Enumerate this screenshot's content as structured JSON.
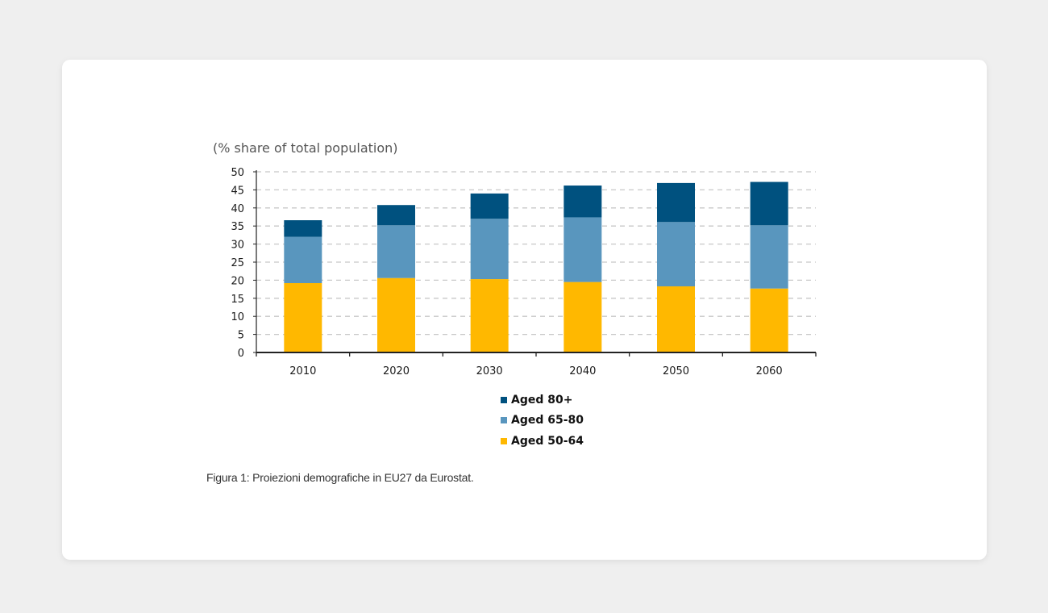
{
  "figure": {
    "caption": "Figura 1: Proiezioni demografiche in EU27 da Eurostat."
  },
  "chart_data": {
    "type": "bar",
    "stacked": true,
    "title": "",
    "ylabel": "(% share of total population)",
    "xlabel": "",
    "categories": [
      "2010",
      "2020",
      "2030",
      "2040",
      "2050",
      "2060"
    ],
    "ylim": [
      0,
      50
    ],
    "yticks": [
      0,
      5,
      10,
      15,
      20,
      25,
      30,
      35,
      40,
      45,
      50
    ],
    "grid": true,
    "legend_position": "bottom-center",
    "series": [
      {
        "name": "Aged 50-64",
        "color": "#FFB800",
        "values": [
          19.2,
          20.6,
          20.3,
          19.5,
          18.3,
          17.7
        ]
      },
      {
        "name": "Aged 65-80",
        "color": "#5996BE",
        "values": [
          12.8,
          14.6,
          16.7,
          17.9,
          17.8,
          17.5
        ]
      },
      {
        "name": "Aged 80+",
        "color": "#00517F",
        "values": [
          4.6,
          5.6,
          7.0,
          8.8,
          10.8,
          12.0
        ]
      }
    ],
    "legend_order": [
      "Aged 80+",
      "Aged 65-80",
      "Aged 50-64"
    ]
  }
}
